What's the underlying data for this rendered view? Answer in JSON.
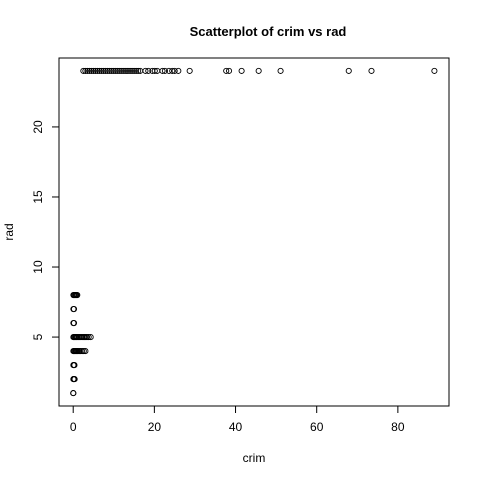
{
  "chart_data": {
    "type": "scatter",
    "title": "Scatterplot of crim vs rad",
    "xlabel": "crim",
    "ylabel": "rad",
    "xlim": [
      -3.5,
      92.6
    ],
    "ylim": [
      0.08,
      24.92
    ],
    "x_ticks": [
      0,
      20,
      40,
      60,
      80
    ],
    "y_ticks": [
      5,
      10,
      15,
      20
    ],
    "grid": false,
    "series": [
      {
        "points": [
          [
            0.01,
            1
          ],
          [
            0.03,
            1
          ],
          [
            0.05,
            2
          ],
          [
            0.1,
            2
          ],
          [
            0.2,
            2
          ],
          [
            0.35,
            2
          ],
          [
            0.05,
            3
          ],
          [
            0.15,
            3
          ],
          [
            0.3,
            3
          ],
          [
            0.05,
            4
          ],
          [
            0.2,
            4
          ],
          [
            0.4,
            4
          ],
          [
            0.6,
            4
          ],
          [
            0.8,
            4
          ],
          [
            1.0,
            4
          ],
          [
            1.2,
            4
          ],
          [
            1.5,
            4
          ],
          [
            1.8,
            4
          ],
          [
            2.2,
            4
          ],
          [
            2.6,
            4
          ],
          [
            3.0,
            4
          ],
          [
            0.05,
            5
          ],
          [
            0.2,
            5
          ],
          [
            0.4,
            5
          ],
          [
            0.6,
            5
          ],
          [
            0.8,
            5
          ],
          [
            1.0,
            5
          ],
          [
            1.3,
            5
          ],
          [
            1.6,
            5
          ],
          [
            1.9,
            5
          ],
          [
            2.2,
            5
          ],
          [
            2.5,
            5
          ],
          [
            2.8,
            5
          ],
          [
            3.1,
            5
          ],
          [
            3.4,
            5
          ],
          [
            3.8,
            5
          ],
          [
            4.3,
            5
          ],
          [
            0.05,
            6
          ],
          [
            0.2,
            6
          ],
          [
            0.05,
            7
          ],
          [
            0.2,
            7
          ],
          [
            0.05,
            8
          ],
          [
            0.2,
            8
          ],
          [
            0.4,
            8
          ],
          [
            0.6,
            8
          ],
          [
            0.8,
            8
          ],
          [
            1.0,
            8
          ],
          [
            2.5,
            24
          ],
          [
            3.0,
            24
          ],
          [
            3.5,
            24
          ],
          [
            4.0,
            24
          ],
          [
            4.5,
            24
          ],
          [
            5.0,
            24
          ],
          [
            5.5,
            24
          ],
          [
            6.0,
            24
          ],
          [
            6.5,
            24
          ],
          [
            7.0,
            24
          ],
          [
            7.5,
            24
          ],
          [
            8.0,
            24
          ],
          [
            8.5,
            24
          ],
          [
            9.0,
            24
          ],
          [
            9.5,
            24
          ],
          [
            10.0,
            24
          ],
          [
            10.5,
            24
          ],
          [
            11.0,
            24
          ],
          [
            11.5,
            24
          ],
          [
            12.0,
            24
          ],
          [
            12.5,
            24
          ],
          [
            13.0,
            24
          ],
          [
            13.5,
            24
          ],
          [
            14.0,
            24
          ],
          [
            14.5,
            24
          ],
          [
            15.0,
            24
          ],
          [
            15.5,
            24
          ],
          [
            16.0,
            24
          ],
          [
            16.5,
            24
          ],
          [
            17.8,
            24
          ],
          [
            18.5,
            24
          ],
          [
            19.5,
            24
          ],
          [
            20.1,
            24
          ],
          [
            20.7,
            24
          ],
          [
            22.0,
            24
          ],
          [
            22.6,
            24
          ],
          [
            23.6,
            24
          ],
          [
            24.4,
            24
          ],
          [
            25.0,
            24
          ],
          [
            25.9,
            24
          ],
          [
            28.7,
            24
          ],
          [
            37.7,
            24
          ],
          [
            38.4,
            24
          ],
          [
            41.5,
            24
          ],
          [
            45.7,
            24
          ],
          [
            51.1,
            24
          ],
          [
            67.9,
            24
          ],
          [
            73.5,
            24
          ],
          [
            89.0,
            24
          ]
        ]
      }
    ]
  }
}
